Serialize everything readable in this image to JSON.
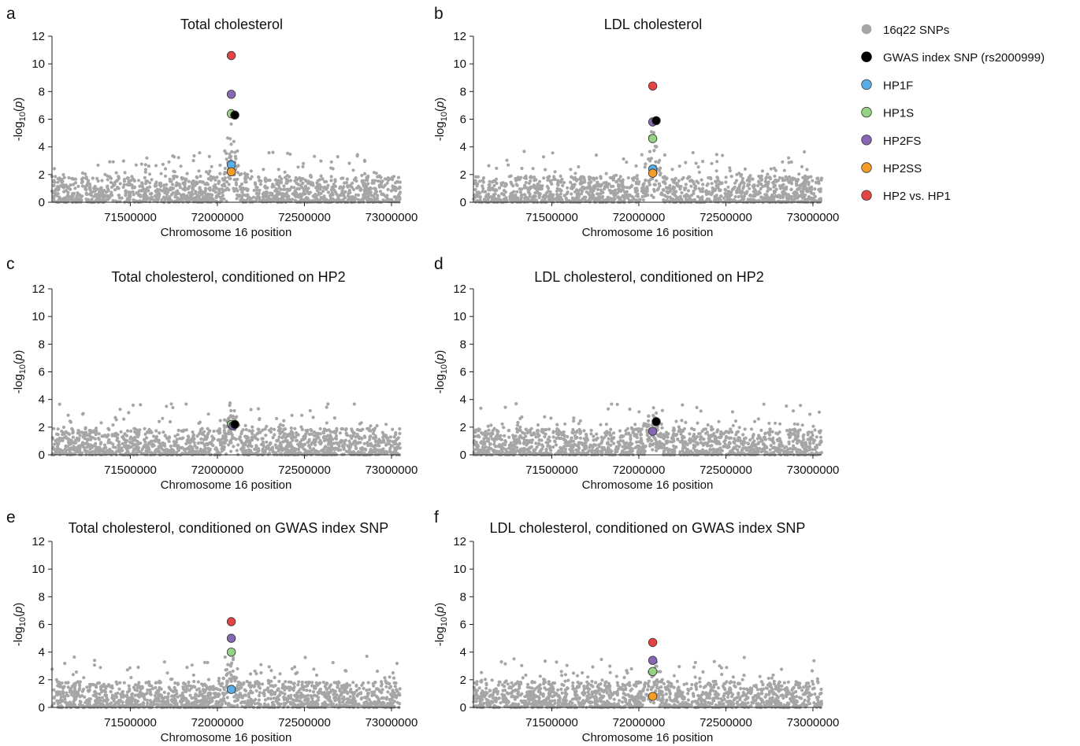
{
  "chart_data": [
    {
      "type": "scatter",
      "panel": "a",
      "title": "Total cholesterol",
      "xlabel": "Chromosome 16 position",
      "ylabel": "-log10(p)",
      "xlim": [
        71050000,
        73050000
      ],
      "ylim": [
        0,
        12
      ],
      "xticks": [
        71500000,
        72000000,
        72500000,
        73000000
      ],
      "yticks": [
        0,
        2,
        4,
        6,
        8,
        10,
        12
      ],
      "peak": {
        "x": 72080000,
        "height": 5.0,
        "width": 60000
      },
      "highlight": [
        {
          "series": "HP2 vs. HP1",
          "x": 72080000,
          "y": 10.6
        },
        {
          "series": "HP2FS",
          "x": 72080000,
          "y": 7.8
        },
        {
          "series": "HP1S",
          "x": 72080000,
          "y": 6.4
        },
        {
          "series": "GWAS index SNP (rs2000999)",
          "x": 72100000,
          "y": 6.3
        },
        {
          "series": "HP1F",
          "x": 72080000,
          "y": 2.7
        },
        {
          "series": "HP2SS",
          "x": 72080000,
          "y": 2.2
        }
      ]
    },
    {
      "type": "scatter",
      "panel": "b",
      "title": "LDL cholesterol",
      "xlabel": "Chromosome 16 position",
      "ylabel": "-log10(p)",
      "xlim": [
        71050000,
        73050000
      ],
      "ylim": [
        0,
        12
      ],
      "xticks": [
        71500000,
        72000000,
        72500000,
        73000000
      ],
      "yticks": [
        0,
        2,
        4,
        6,
        8,
        10,
        12
      ],
      "peak": {
        "x": 72080000,
        "height": 4.6,
        "width": 60000
      },
      "highlight": [
        {
          "series": "HP2 vs. HP1",
          "x": 72080000,
          "y": 8.4
        },
        {
          "series": "HP2FS",
          "x": 72080000,
          "y": 5.8
        },
        {
          "series": "GWAS index SNP (rs2000999)",
          "x": 72100000,
          "y": 5.9
        },
        {
          "series": "HP1S",
          "x": 72080000,
          "y": 4.6
        },
        {
          "series": "HP1F",
          "x": 72080000,
          "y": 2.4
        },
        {
          "series": "HP2SS",
          "x": 72080000,
          "y": 2.1
        }
      ]
    },
    {
      "type": "scatter",
      "panel": "c",
      "title": "Total cholesterol, conditioned on HP2",
      "xlabel": "Chromosome 16 position",
      "ylabel": "-log10(p)",
      "xlim": [
        71050000,
        73050000
      ],
      "ylim": [
        0,
        12
      ],
      "xticks": [
        71500000,
        72000000,
        72500000,
        73000000
      ],
      "yticks": [
        0,
        2,
        4,
        6,
        8,
        10,
        12
      ],
      "peak": {
        "x": 72080000,
        "height": 2.8,
        "width": 60000
      },
      "highlight": [
        {
          "series": "HP1S",
          "x": 72080000,
          "y": 2.2
        },
        {
          "series": "HP2FS",
          "x": 72090000,
          "y": 2.1
        },
        {
          "series": "GWAS index SNP (rs2000999)",
          "x": 72100000,
          "y": 2.2
        }
      ]
    },
    {
      "type": "scatter",
      "panel": "d",
      "title": "LDL cholesterol, conditioned on HP2",
      "xlabel": "Chromosome 16 position",
      "ylabel": "-log10(p)",
      "xlim": [
        71050000,
        73050000
      ],
      "ylim": [
        0,
        12
      ],
      "xticks": [
        71500000,
        72000000,
        72500000,
        73000000
      ],
      "yticks": [
        0,
        2,
        4,
        6,
        8,
        10,
        12
      ],
      "peak": {
        "x": 72080000,
        "height": 2.5,
        "width": 60000
      },
      "highlight": [
        {
          "series": "HP2FS",
          "x": 72080000,
          "y": 1.7
        },
        {
          "series": "GWAS index SNP (rs2000999)",
          "x": 72100000,
          "y": 2.4
        }
      ]
    },
    {
      "type": "scatter",
      "panel": "e",
      "title": "Total cholesterol, conditioned on GWAS index SNP",
      "xlabel": "Chromosome 16 position",
      "ylabel": "-log10(p)",
      "xlim": [
        71050000,
        73050000
      ],
      "ylim": [
        0,
        12
      ],
      "xticks": [
        71500000,
        72000000,
        72500000,
        73000000
      ],
      "yticks": [
        0,
        2,
        4,
        6,
        8,
        10,
        12
      ],
      "peak": {
        "x": 72080000,
        "height": 3.2,
        "width": 60000
      },
      "highlight": [
        {
          "series": "HP2 vs. HP1",
          "x": 72080000,
          "y": 6.2
        },
        {
          "series": "HP2FS",
          "x": 72080000,
          "y": 5.0
        },
        {
          "series": "HP1S",
          "x": 72080000,
          "y": 4.0
        },
        {
          "series": "HP1F",
          "x": 72080000,
          "y": 1.3
        }
      ]
    },
    {
      "type": "scatter",
      "panel": "f",
      "title": "LDL cholesterol, conditioned on GWAS index SNP",
      "xlabel": "Chromosome 16 position",
      "ylabel": "-log10(p)",
      "xlim": [
        71050000,
        73050000
      ],
      "ylim": [
        0,
        12
      ],
      "xticks": [
        71500000,
        72000000,
        72500000,
        73000000
      ],
      "yticks": [
        0,
        2,
        4,
        6,
        8,
        10,
        12
      ],
      "peak": {
        "x": 72080000,
        "height": 2.8,
        "width": 60000
      },
      "highlight": [
        {
          "series": "HP2 vs. HP1",
          "x": 72080000,
          "y": 4.7
        },
        {
          "series": "HP2FS",
          "x": 72080000,
          "y": 3.4
        },
        {
          "series": "HP1S",
          "x": 72080000,
          "y": 2.6
        },
        {
          "series": "HP2SS",
          "x": 72080000,
          "y": 0.8
        }
      ]
    }
  ],
  "legend": {
    "placement": "top-right",
    "items": [
      {
        "label": "16q22 SNPs",
        "color": "#a6a6a6",
        "stroke": "none"
      },
      {
        "label": "GWAS index SNP (rs2000999)",
        "color": "#000000",
        "stroke": "#000000"
      },
      {
        "label": "HP1F",
        "color": "#5aaee6",
        "stroke": "#333333"
      },
      {
        "label": "HP1S",
        "color": "#95d283",
        "stroke": "#333333"
      },
      {
        "label": "HP2FS",
        "color": "#8767b3",
        "stroke": "#333333"
      },
      {
        "label": "HP2SS",
        "color": "#f39d28",
        "stroke": "#333333"
      },
      {
        "label": "HP2 vs. HP1",
        "color": "#e64444",
        "stroke": "#333333"
      }
    ]
  },
  "colors": {
    "background_snps": "#a6a6a6",
    "GWAS index SNP (rs2000999)": "#000000",
    "HP1F": "#5aaee6",
    "HP1S": "#95d283",
    "HP2FS": "#8767b3",
    "HP2SS": "#f39d28",
    "HP2 vs. HP1": "#e64444"
  }
}
